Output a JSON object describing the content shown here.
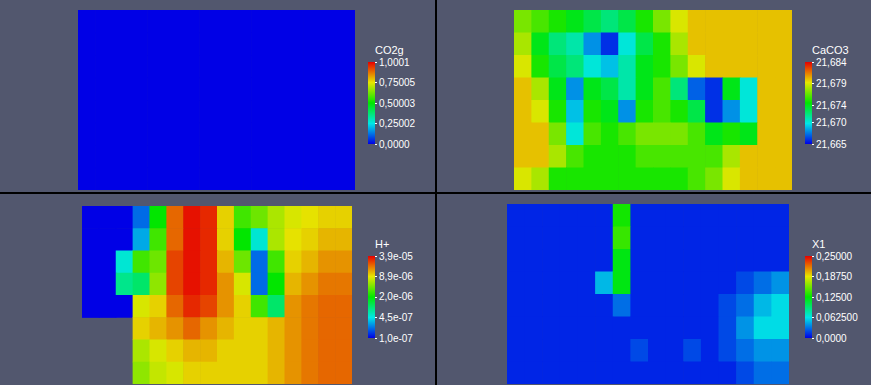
{
  "chart_data": [
    {
      "type": "heatmap",
      "title": "CO2g",
      "colorbar_range": [
        0,
        1.0001
      ],
      "colorbar_ticks": [
        {
          "value": 1.0001,
          "label": "1,0001"
        },
        {
          "value": 0.75005,
          "label": "0,75005"
        },
        {
          "value": 0.50003,
          "label": "0,50003"
        },
        {
          "value": 0.25002,
          "label": "0,25002"
        },
        {
          "value": 0,
          "label": "0,0000"
        }
      ],
      "cells": [
        [
          0,
          0,
          0,
          0,
          0,
          0,
          0,
          0,
          0,
          0,
          0,
          0,
          0,
          0,
          0,
          0
        ],
        [
          0,
          0,
          0,
          0,
          0,
          0,
          0,
          0,
          0,
          0,
          0,
          0,
          0,
          0,
          0,
          0
        ],
        [
          0,
          0,
          0,
          0,
          0,
          0,
          0,
          0,
          0,
          0,
          0,
          0,
          0,
          0,
          0,
          0
        ],
        [
          0,
          0,
          0,
          0,
          0,
          0,
          0,
          0,
          0,
          0,
          0,
          0,
          0,
          0,
          0,
          0
        ],
        [
          0,
          0,
          0,
          0,
          0,
          0,
          0,
          0,
          0,
          0,
          0,
          0,
          0,
          0,
          0,
          0
        ],
        [
          0,
          0,
          0,
          0,
          0,
          0,
          0,
          0,
          0,
          0,
          0,
          0,
          0,
          0,
          0,
          0
        ],
        [
          0,
          0,
          0,
          0,
          0,
          0,
          0,
          0,
          0,
          0,
          0,
          0,
          0,
          0,
          0,
          0
        ],
        [
          0,
          0,
          0,
          0,
          0,
          0,
          0,
          0,
          0,
          0,
          0,
          0,
          0,
          0,
          0,
          0
        ]
      ]
    },
    {
      "type": "heatmap",
      "title": "CaCO3",
      "colorbar_range": [
        21.665,
        21.684
      ],
      "colorbar_ticks": [
        {
          "value": 21.684,
          "label": "21,684"
        },
        {
          "value": 21.679,
          "label": "21,679"
        },
        {
          "value": 21.674,
          "label": "21,674"
        },
        {
          "value": 21.67,
          "label": "21,670"
        },
        {
          "value": 21.665,
          "label": "21,665"
        }
      ],
      "cells": [
        [
          21.677,
          21.676,
          21.675,
          21.674,
          21.673,
          21.672,
          21.673,
          21.675,
          21.677,
          21.679,
          21.68,
          21.68,
          21.68,
          21.68,
          21.68,
          21.68
        ],
        [
          21.678,
          21.674,
          21.672,
          21.671,
          21.668,
          21.666,
          21.67,
          21.673,
          21.675,
          21.678,
          21.68,
          21.68,
          21.68,
          21.68,
          21.68,
          21.68
        ],
        [
          21.679,
          21.675,
          21.673,
          21.672,
          21.67,
          21.669,
          21.671,
          21.674,
          21.675,
          21.677,
          21.679,
          21.68,
          21.68,
          21.68,
          21.68,
          21.68
        ],
        [
          21.68,
          21.678,
          21.674,
          21.668,
          21.674,
          21.673,
          21.671,
          21.674,
          21.676,
          21.672,
          21.667,
          21.666,
          21.674,
          21.67,
          21.68,
          21.68
        ],
        [
          21.68,
          21.679,
          21.675,
          21.669,
          21.675,
          21.674,
          21.668,
          21.675,
          21.676,
          21.675,
          21.673,
          21.666,
          21.668,
          21.67,
          21.68,
          21.68
        ],
        [
          21.68,
          21.68,
          21.677,
          21.67,
          21.676,
          21.675,
          21.676,
          21.677,
          21.677,
          21.677,
          21.676,
          21.674,
          21.675,
          21.674,
          21.68,
          21.68
        ],
        [
          21.68,
          21.68,
          21.678,
          21.676,
          21.675,
          21.675,
          21.675,
          21.676,
          21.676,
          21.676,
          21.676,
          21.676,
          21.678,
          21.68,
          21.68,
          21.68
        ],
        [
          21.679,
          21.678,
          21.675,
          21.675,
          21.675,
          21.675,
          21.675,
          21.675,
          21.675,
          21.675,
          21.676,
          21.677,
          21.679,
          21.68,
          21.68,
          21.68
        ]
      ]
    },
    {
      "type": "heatmap",
      "title": "H+",
      "log": true,
      "colorbar_range": [
        1e-07,
        3.9e-05
      ],
      "colorbar_ticks": [
        {
          "value": 3.9e-05,
          "label": "3,9e-05"
        },
        {
          "value": 8.9e-06,
          "label": "8,9e-06"
        },
        {
          "value": 2e-06,
          "label": "2,0e-06"
        },
        {
          "value": 4.5e-07,
          "label": "4,5e-07"
        },
        {
          "value": 1e-07,
          "label": "1,0e-07"
        }
      ],
      "cells": [
        [
          1e-07,
          1e-07,
          1e-07,
          2e-07,
          2e-06,
          2e-05,
          3.5e-05,
          3e-05,
          1e-05,
          3e-06,
          4e-06,
          6e-06,
          8e-06,
          9e-06,
          1e-05,
          1e-05
        ],
        [
          1e-07,
          1e-07,
          1e-07,
          3e-07,
          3e-06,
          2e-05,
          3.5e-05,
          3e-05,
          1e-05,
          2e-06,
          5e-07,
          6e-06,
          9e-06,
          1e-05,
          1.2e-05,
          1.2e-05
        ],
        [
          1e-07,
          1e-07,
          5e-07,
          3e-06,
          4e-06,
          2.5e-05,
          3.5e-05,
          3e-05,
          1.2e-05,
          4e-06,
          2e-07,
          3e-06,
          1e-05,
          1.2e-05,
          1.5e-05,
          1.5e-05
        ],
        [
          1e-07,
          1e-07,
          8e-07,
          1e-06,
          5e-06,
          2.5e-05,
          3.5e-05,
          3e-05,
          1.5e-05,
          8e-06,
          2e-07,
          2e-06,
          1.2e-05,
          1.5e-05,
          1.8e-05,
          1.8e-05
        ],
        [
          1e-07,
          1e-07,
          1e-07,
          8e-06,
          1e-05,
          2e-05,
          3e-05,
          2.5e-05,
          1.5e-05,
          1e-05,
          3e-06,
          1e-06,
          1.5e-05,
          1.8e-05,
          2e-05,
          2e-05
        ],
        [
          null,
          null,
          null,
          1e-05,
          1.2e-05,
          1.5e-05,
          2e-05,
          1.5e-05,
          1.2e-05,
          1e-05,
          1e-05,
          1.2e-05,
          1.5e-05,
          1.8e-05,
          2e-05,
          2e-05
        ],
        [
          null,
          null,
          null,
          6e-06,
          8e-06,
          1e-05,
          1.2e-05,
          1.2e-05,
          1e-05,
          1e-05,
          1e-05,
          1.2e-05,
          1.5e-05,
          1.8e-05,
          2e-05,
          2e-05
        ],
        [
          null,
          null,
          null,
          5e-06,
          7e-06,
          8e-06,
          1e-05,
          1e-05,
          1e-05,
          1e-05,
          1e-05,
          1.2e-05,
          1.5e-05,
          1.8e-05,
          2e-05,
          2e-05
        ]
      ]
    },
    {
      "type": "heatmap",
      "title": "X1",
      "colorbar_range": [
        0,
        0.25
      ],
      "colorbar_ticks": [
        {
          "value": 0.25,
          "label": "0,25000"
        },
        {
          "value": 0.1875,
          "label": "0,18750"
        },
        {
          "value": 0.125,
          "label": "0,12500"
        },
        {
          "value": 0.0625,
          "label": "0,062500"
        },
        {
          "value": 0,
          "label": "0,0000"
        }
      ],
      "cells": [
        [
          0.01,
          0.01,
          0.01,
          0.01,
          0.01,
          0.01,
          0.13,
          0.01,
          0.01,
          0.01,
          0.01,
          0.01,
          0.01,
          0.01,
          0.01,
          0.01
        ],
        [
          0.01,
          0.01,
          0.01,
          0.01,
          0.01,
          0.01,
          0.14,
          0.01,
          0.01,
          0.01,
          0.01,
          0.01,
          0.01,
          0.01,
          0.01,
          0.01
        ],
        [
          0.01,
          0.01,
          0.01,
          0.01,
          0.01,
          0.01,
          0.12,
          0.01,
          0.01,
          0.01,
          0.01,
          0.01,
          0.01,
          0.01,
          0.01,
          0.01
        ],
        [
          0.01,
          0.01,
          0.01,
          0.01,
          0.01,
          0.05,
          0.12,
          0.01,
          0.01,
          0.01,
          0.01,
          0.01,
          0.01,
          0.02,
          0.03,
          0.04
        ],
        [
          0.01,
          0.01,
          0.01,
          0.01,
          0.01,
          0.01,
          0.03,
          0.01,
          0.01,
          0.01,
          0.01,
          0.01,
          0.02,
          0.03,
          0.05,
          0.06
        ],
        [
          0.01,
          0.01,
          0.01,
          0.01,
          0.01,
          0.01,
          0.01,
          0.01,
          0.01,
          0.01,
          0.01,
          0.01,
          0.02,
          0.04,
          0.06,
          0.06
        ],
        [
          0.01,
          0.01,
          0.01,
          0.01,
          0.01,
          0.01,
          0.01,
          0.02,
          0.01,
          0.01,
          0.02,
          0.01,
          0.02,
          0.03,
          0.04,
          0.04
        ],
        [
          0.01,
          0.01,
          0.01,
          0.01,
          0.01,
          0.01,
          0.01,
          0.01,
          0.01,
          0.01,
          0.01,
          0.01,
          0.01,
          0.02,
          0.03,
          0.03
        ]
      ]
    }
  ]
}
